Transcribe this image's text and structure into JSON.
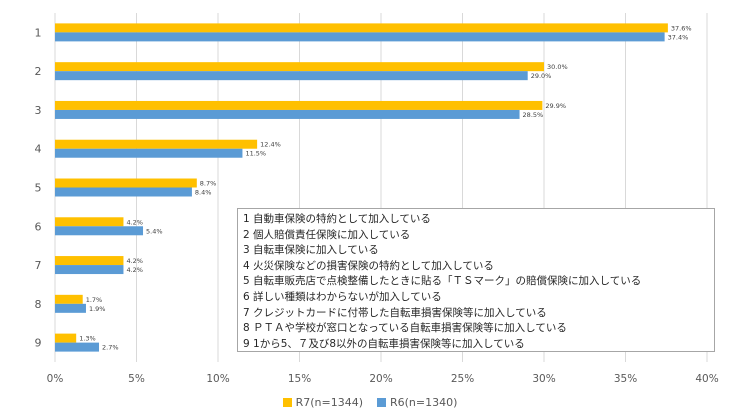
{
  "chart_data": {
    "type": "bar",
    "orientation": "horizontal",
    "categories": [
      "1",
      "2",
      "3",
      "4",
      "5",
      "6",
      "7",
      "8",
      "9"
    ],
    "series": [
      {
        "name": "R7(n=1344)",
        "color": "#FFC000",
        "values": [
          37.6,
          30.0,
          29.9,
          12.4,
          8.7,
          4.2,
          4.2,
          1.7,
          1.3
        ],
        "labels": [
          "37.6%",
          "30.0%",
          "29.9%",
          "12.4%",
          "8.7%",
          "4.2%",
          "4.2%",
          "1.7%",
          "1.3%"
        ]
      },
      {
        "name": "R6(n=1340)",
        "color": "#5B9BD5",
        "values": [
          37.4,
          29.0,
          28.5,
          11.5,
          8.4,
          5.4,
          4.2,
          1.9,
          2.7
        ],
        "labels": [
          "37.4%",
          "29.0%",
          "28.5%",
          "11.5%",
          "8.4%",
          "5.4%",
          "4.2%",
          "1.9%",
          "2.7%"
        ]
      }
    ],
    "xlim": [
      0,
      40
    ],
    "xticks": [
      "0%",
      "5%",
      "10%",
      "15%",
      "20%",
      "25%",
      "30%",
      "35%",
      "40%"
    ],
    "grid": true,
    "legend": "bottom",
    "category_legend": [
      "1 自動車保険の特約として加入している",
      "2 個人賠償責任保険に加入している",
      "3 自転車保険に加入している",
      "4 火災保険などの損害保険の特約として加入している",
      "5 自転車販売店で点検整備したときに貼る「ＴＳマーク」の賠償保険に加入している",
      "6 詳しい種類はわからないが加入している",
      "7 クレジットカードに付帯した自転車損害保険等に加入している",
      "8 ＰＴＡや学校が窓口となっている自転車損害保険等に加入している",
      "9 1から5、７及び8以外の自転車損害保険等に加入している"
    ]
  }
}
